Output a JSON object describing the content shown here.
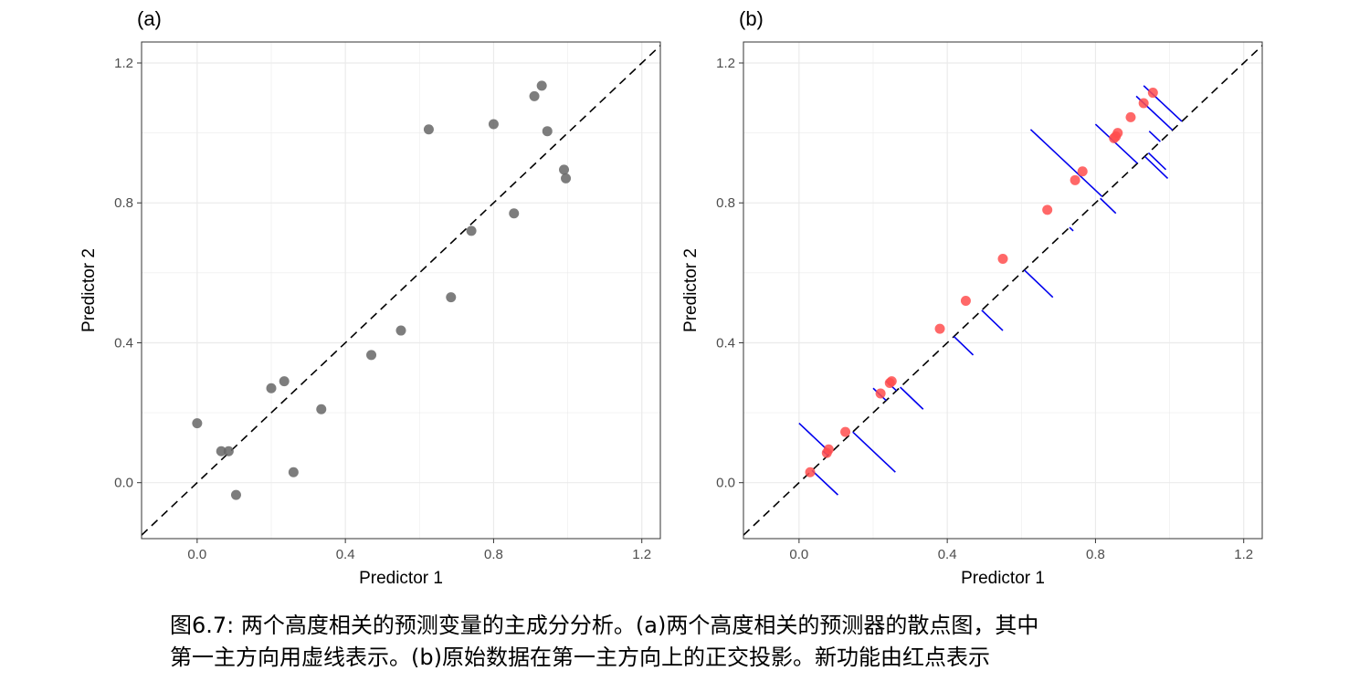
{
  "caption": {
    "line1": "图6.7: 两个高度相关的预测变量的主成分分析。(a)两个高度相关的预测器的散点图，其中",
    "line2": "第一主方向用虚线表示。(b)原始数据在第一主方向上的正交投影。新功能由红点表示"
  },
  "chart_data": [
    {
      "type": "scatter",
      "panel_label": "(a)",
      "title": "",
      "xlabel": "Predictor 1",
      "ylabel": "Predictor 2",
      "xlim": [
        -0.15,
        1.25
      ],
      "ylim": [
        -0.16,
        1.26
      ],
      "xticks": [
        0.0,
        0.4,
        0.8,
        1.2
      ],
      "xtick_labels": [
        "0.0",
        "0.4",
        "0.8",
        "1.2"
      ],
      "yticks": [
        0.0,
        0.4,
        0.8,
        1.2
      ],
      "ytick_labels": [
        "0.0",
        "0.4",
        "0.8",
        "1.2"
      ],
      "grid": true,
      "reference_line": {
        "style": "dashed",
        "slope": 1,
        "intercept": 0
      },
      "point_color": "#666666",
      "series": [
        {
          "points": [
            [
              0.0,
              0.17
            ],
            [
              0.065,
              0.09
            ],
            [
              0.085,
              0.09
            ],
            [
              0.105,
              -0.035
            ],
            [
              0.2,
              0.27
            ],
            [
              0.235,
              0.29
            ],
            [
              0.26,
              0.03
            ],
            [
              0.335,
              0.21
            ],
            [
              0.47,
              0.365
            ],
            [
              0.55,
              0.435
            ],
            [
              0.625,
              1.01
            ],
            [
              0.685,
              0.53
            ],
            [
              0.74,
              0.72
            ],
            [
              0.8,
              1.025
            ],
            [
              0.855,
              0.77
            ],
            [
              0.91,
              1.105
            ],
            [
              0.93,
              1.135
            ],
            [
              0.945,
              1.005
            ],
            [
              0.99,
              0.895
            ],
            [
              0.995,
              0.87
            ]
          ]
        }
      ]
    },
    {
      "type": "scatter",
      "panel_label": "(b)",
      "title": "",
      "xlabel": "Predictor 1",
      "ylabel": "Predictor 2",
      "xlim": [
        -0.15,
        1.25
      ],
      "ylim": [
        -0.16,
        1.26
      ],
      "xticks": [
        0.0,
        0.4,
        0.8,
        1.2
      ],
      "xtick_labels": [
        "0.0",
        "0.4",
        "0.8",
        "1.2"
      ],
      "yticks": [
        0.0,
        0.4,
        0.8,
        1.2
      ],
      "ytick_labels": [
        "0.0",
        "0.4",
        "0.8",
        "1.2"
      ],
      "grid": true,
      "reference_line": {
        "style": "dashed",
        "slope": 1,
        "intercept": 0
      },
      "point_color": "#ff4d4d",
      "segment_color": "#0000ee",
      "segments": [
        {
          "from": [
            0.0,
            0.17
          ],
          "to": [
            0.085,
            0.085
          ]
        },
        {
          "from": [
            0.065,
            0.09
          ],
          "to": [
            0.078,
            0.078
          ]
        },
        {
          "from": [
            0.085,
            0.09
          ],
          "to": [
            0.088,
            0.088
          ]
        },
        {
          "from": [
            0.105,
            -0.035
          ],
          "to": [
            0.035,
            0.035
          ]
        },
        {
          "from": [
            0.2,
            0.27
          ],
          "to": [
            0.235,
            0.235
          ]
        },
        {
          "from": [
            0.235,
            0.29
          ],
          "to": [
            0.263,
            0.263
          ]
        },
        {
          "from": [
            0.26,
            0.03
          ],
          "to": [
            0.145,
            0.145
          ]
        },
        {
          "from": [
            0.335,
            0.21
          ],
          "to": [
            0.273,
            0.273
          ]
        },
        {
          "from": [
            0.47,
            0.365
          ],
          "to": [
            0.418,
            0.418
          ]
        },
        {
          "from": [
            0.55,
            0.435
          ],
          "to": [
            0.493,
            0.493
          ]
        },
        {
          "from": [
            0.625,
            1.01
          ],
          "to": [
            0.818,
            0.818
          ]
        },
        {
          "from": [
            0.685,
            0.53
          ],
          "to": [
            0.608,
            0.608
          ]
        },
        {
          "from": [
            0.74,
            0.72
          ],
          "to": [
            0.73,
            0.73
          ]
        },
        {
          "from": [
            0.8,
            1.025
          ],
          "to": [
            0.913,
            0.913
          ]
        },
        {
          "from": [
            0.855,
            0.77
          ],
          "to": [
            0.813,
            0.813
          ]
        },
        {
          "from": [
            0.91,
            1.105
          ],
          "to": [
            1.008,
            1.008
          ]
        },
        {
          "from": [
            0.93,
            1.135
          ],
          "to": [
            1.033,
            1.033
          ]
        },
        {
          "from": [
            0.945,
            1.005
          ],
          "to": [
            0.975,
            0.975
          ]
        },
        {
          "from": [
            0.99,
            0.895
          ],
          "to": [
            0.943,
            0.943
          ]
        },
        {
          "from": [
            0.995,
            0.87
          ],
          "to": [
            0.933,
            0.933
          ]
        }
      ],
      "series": [
        {
          "points": [
            [
              0.03,
              0.03
            ],
            [
              0.075,
              0.085
            ],
            [
              0.08,
              0.095
            ],
            [
              0.125,
              0.145
            ],
            [
              0.22,
              0.255
            ],
            [
              0.245,
              0.285
            ],
            [
              0.25,
              0.29
            ],
            [
              0.38,
              0.44
            ],
            [
              0.45,
              0.52
            ],
            [
              0.55,
              0.64
            ],
            [
              0.67,
              0.78
            ],
            [
              0.745,
              0.865
            ],
            [
              0.765,
              0.89
            ],
            [
              0.85,
              0.985
            ],
            [
              0.855,
              0.99
            ],
            [
              0.86,
              1.0
            ],
            [
              0.895,
              1.045
            ],
            [
              0.93,
              1.085
            ],
            [
              0.955,
              1.115
            ]
          ]
        }
      ]
    }
  ]
}
